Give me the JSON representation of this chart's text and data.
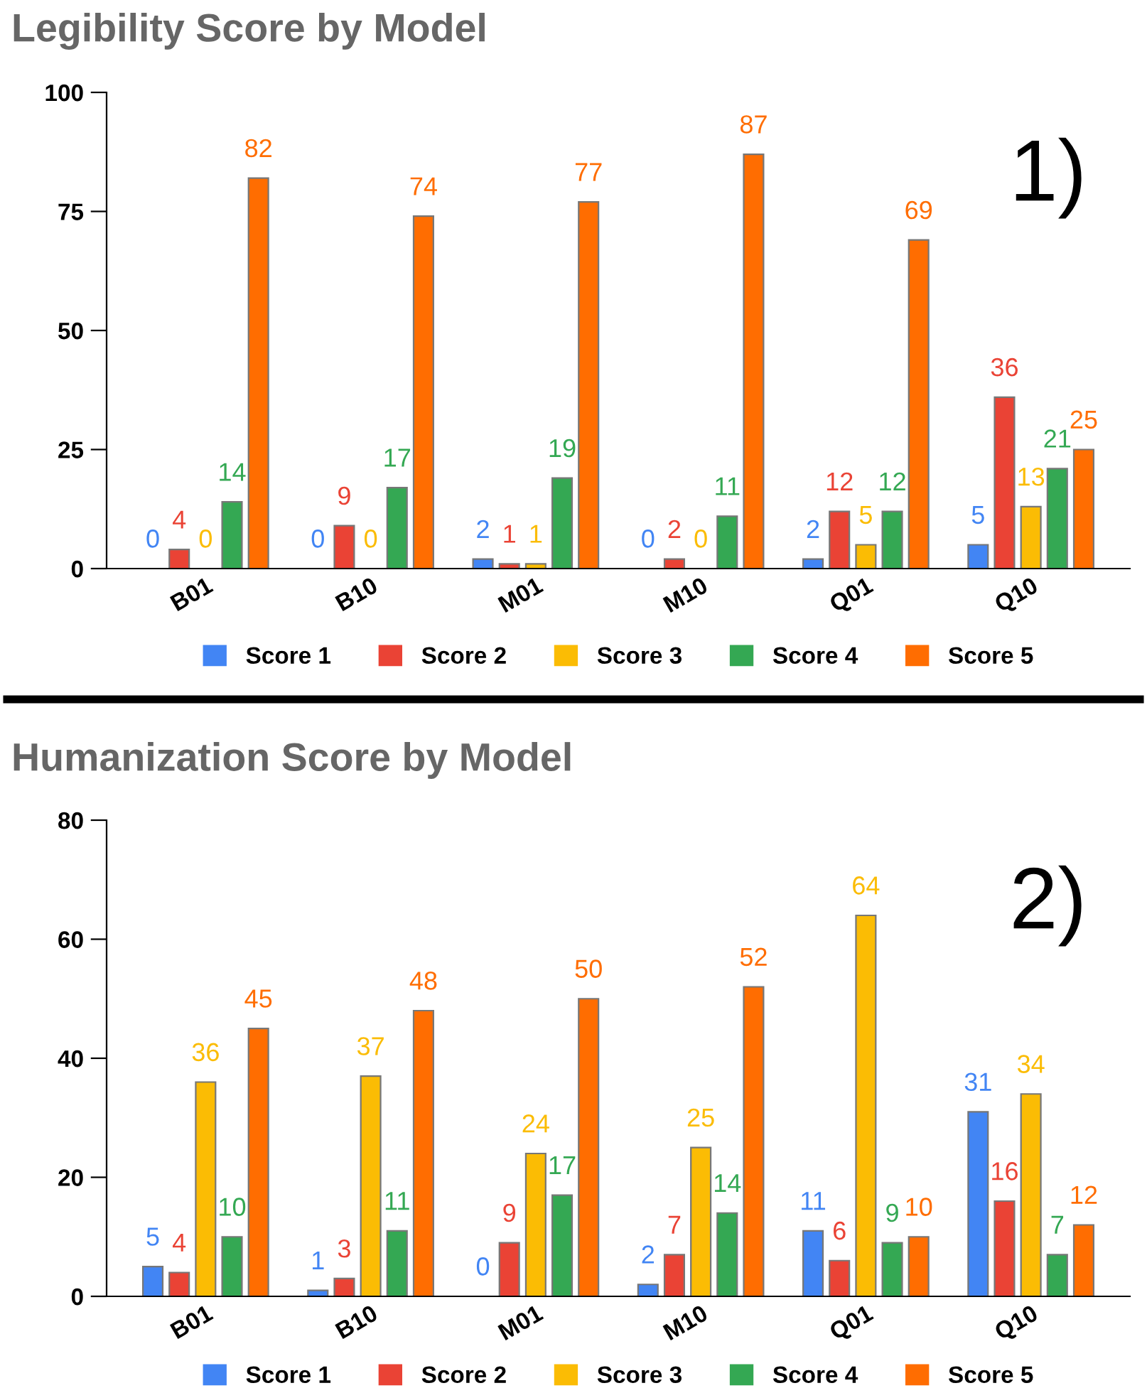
{
  "chart_data": [
    {
      "type": "bar",
      "title": "Legibility Score by Model",
      "categories": [
        "B01",
        "B10",
        "M01",
        "M10",
        "Q01",
        "Q10"
      ],
      "series": [
        {
          "name": "Score 1",
          "color": "#4285f4",
          "values": [
            0,
            0,
            2,
            0,
            2,
            5
          ]
        },
        {
          "name": "Score 2",
          "color": "#ea4335",
          "values": [
            4,
            9,
            1,
            2,
            12,
            36
          ]
        },
        {
          "name": "Score 3",
          "color": "#fbbc04",
          "values": [
            0,
            0,
            1,
            0,
            5,
            13
          ]
        },
        {
          "name": "Score 4",
          "color": "#34a853",
          "values": [
            14,
            17,
            19,
            11,
            12,
            21
          ]
        },
        {
          "name": "Score 5",
          "color": "#ff6d01",
          "values": [
            82,
            74,
            77,
            87,
            69,
            25
          ]
        }
      ],
      "ylim": [
        0,
        100
      ],
      "yticks": [
        0,
        25,
        50,
        75,
        100
      ],
      "data_labels": true,
      "legend": "bottom",
      "grid": false,
      "annotations": [
        "1)"
      ]
    },
    {
      "type": "bar",
      "title": "Humanization Score by Model",
      "categories": [
        "B01",
        "B10",
        "M01",
        "M10",
        "Q01",
        "Q10"
      ],
      "series": [
        {
          "name": "Score 1",
          "color": "#4285f4",
          "values": [
            5,
            1,
            0,
            2,
            11,
            31
          ]
        },
        {
          "name": "Score 2",
          "color": "#ea4335",
          "values": [
            4,
            3,
            9,
            7,
            6,
            16
          ]
        },
        {
          "name": "Score 3",
          "color": "#fbbc04",
          "values": [
            36,
            37,
            24,
            25,
            64,
            34
          ]
        },
        {
          "name": "Score 4",
          "color": "#34a853",
          "values": [
            10,
            11,
            17,
            14,
            9,
            7
          ]
        },
        {
          "name": "Score 5",
          "color": "#ff6d01",
          "values": [
            45,
            48,
            50,
            52,
            10,
            12
          ]
        }
      ],
      "ylim": [
        0,
        80
      ],
      "yticks": [
        0,
        20,
        40,
        60,
        80
      ],
      "data_labels": true,
      "legend": "bottom",
      "grid": false,
      "annotations": [
        "2)"
      ]
    }
  ]
}
